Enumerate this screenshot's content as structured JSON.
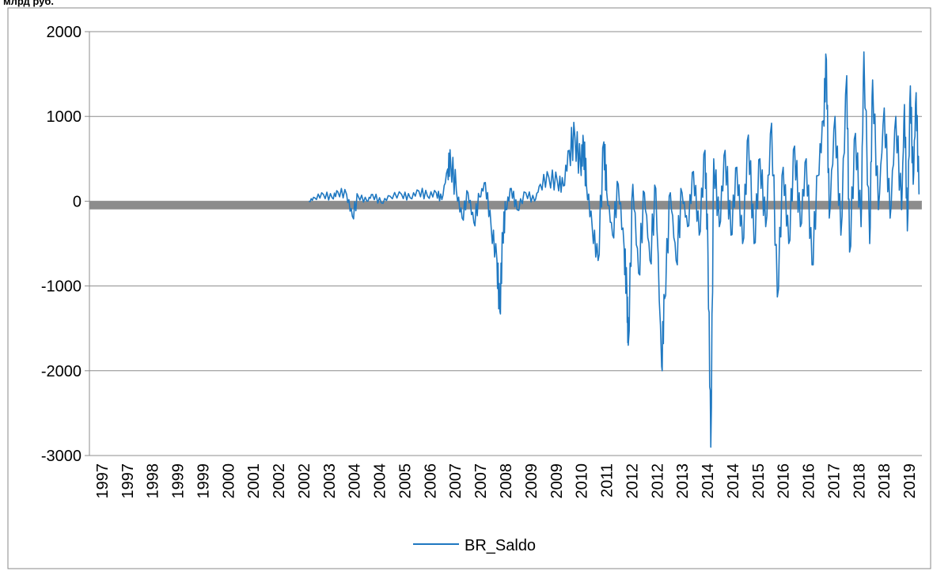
{
  "unit_label": "млрд руб.",
  "chart_data": {
    "type": "line",
    "ylim": [
      -3000,
      2000
    ],
    "yticks": [
      2000,
      1000,
      0,
      -1000,
      -2000,
      -3000
    ],
    "xticks": [
      "1997",
      "1997",
      "1998",
      "1999",
      "1999",
      "2000",
      "2001",
      "2002",
      "2002",
      "2003",
      "2004",
      "2004",
      "2005",
      "2006",
      "2007",
      "2007",
      "2008",
      "2009",
      "2009",
      "2010",
      "2011",
      "2012",
      "2012",
      "2013",
      "2014",
      "2014",
      "2015",
      "2016",
      "2016",
      "2017",
      "2018",
      "2018",
      "2019"
    ],
    "grid": true,
    "legend_position": "bottom",
    "series": [
      {
        "name": "BR_Saldo",
        "color": "#1f78c1",
        "points": [
          [
            "2003-05-01",
            0
          ],
          [
            "2003-07-01",
            40
          ],
          [
            "2003-10-01",
            80
          ],
          [
            "2004-01-01",
            40
          ],
          [
            "2004-03-01",
            110
          ],
          [
            "2004-06-01",
            80
          ],
          [
            "2004-08-01",
            -180
          ],
          [
            "2004-10-01",
            60
          ],
          [
            "2005-01-01",
            0
          ],
          [
            "2005-03-01",
            80
          ],
          [
            "2005-06-01",
            -20
          ],
          [
            "2005-09-01",
            60
          ],
          [
            "2006-01-01",
            80
          ],
          [
            "2006-04-01",
            40
          ],
          [
            "2006-07-01",
            120
          ],
          [
            "2006-10-01",
            60
          ],
          [
            "2007-01-01",
            100
          ],
          [
            "2007-03-01",
            20
          ],
          [
            "2007-05-01",
            380
          ],
          [
            "2007-06-01",
            480
          ],
          [
            "2007-08-01",
            120
          ],
          [
            "2007-10-01",
            -200
          ],
          [
            "2007-12-01",
            100
          ],
          [
            "2008-02-01",
            -250
          ],
          [
            "2008-04-01",
            50
          ],
          [
            "2008-06-01",
            220
          ],
          [
            "2008-08-01",
            -300
          ],
          [
            "2008-10-01",
            -700
          ],
          [
            "2008-11-01",
            -1300
          ],
          [
            "2008-12-01",
            -400
          ],
          [
            "2009-01-01",
            -100
          ],
          [
            "2009-03-01",
            150
          ],
          [
            "2009-05-01",
            -100
          ],
          [
            "2009-08-01",
            100
          ],
          [
            "2009-11-01",
            0
          ],
          [
            "2010-01-01",
            200
          ],
          [
            "2010-04-01",
            280
          ],
          [
            "2010-07-01",
            220
          ],
          [
            "2010-09-01",
            180
          ],
          [
            "2010-11-01",
            600
          ],
          [
            "2011-01-01",
            750
          ],
          [
            "2011-03-01",
            400
          ],
          [
            "2011-04-01",
            680
          ],
          [
            "2011-05-01",
            200
          ],
          [
            "2011-07-01",
            -300
          ],
          [
            "2011-09-01",
            -700
          ],
          [
            "2011-11-01",
            700
          ],
          [
            "2011-12-01",
            100
          ],
          [
            "2012-02-01",
            -400
          ],
          [
            "2012-04-01",
            200
          ],
          [
            "2012-06-01",
            -550
          ],
          [
            "2012-07-01",
            -1100
          ],
          [
            "2012-07-15",
            -1700
          ],
          [
            "2012-09-01",
            200
          ],
          [
            "2012-11-01",
            -850
          ],
          [
            "2013-01-01",
            100
          ],
          [
            "2013-03-01",
            -700
          ],
          [
            "2013-05-01",
            150
          ],
          [
            "2013-07-01",
            -1950
          ],
          [
            "2013-08-01",
            -1150
          ],
          [
            "2013-10-01",
            100
          ],
          [
            "2013-12-01",
            -700
          ],
          [
            "2014-02-01",
            100
          ],
          [
            "2014-04-01",
            -300
          ],
          [
            "2014-06-01",
            350
          ],
          [
            "2014-08-01",
            -400
          ],
          [
            "2014-10-01",
            600
          ],
          [
            "2014-11-01",
            -600
          ],
          [
            "2014-12-01",
            -2900
          ],
          [
            "2015-01-01",
            500
          ],
          [
            "2015-03-01",
            -300
          ],
          [
            "2015-05-01",
            600
          ],
          [
            "2015-07-01",
            -400
          ],
          [
            "2015-09-01",
            400
          ],
          [
            "2015-11-01",
            -500
          ],
          [
            "2016-01-01",
            780
          ],
          [
            "2016-03-01",
            -500
          ],
          [
            "2016-05-01",
            500
          ],
          [
            "2016-07-01",
            -300
          ],
          [
            "2016-09-01",
            920
          ],
          [
            "2016-11-01",
            -1130
          ],
          [
            "2017-01-01",
            400
          ],
          [
            "2017-03-01",
            -500
          ],
          [
            "2017-05-01",
            650
          ],
          [
            "2017-07-01",
            -300
          ],
          [
            "2017-09-01",
            500
          ],
          [
            "2017-11-01",
            -750
          ],
          [
            "2018-01-01",
            300
          ],
          [
            "2018-03-01",
            950
          ],
          [
            "2018-04-01",
            1670
          ],
          [
            "2018-05-01",
            -200
          ],
          [
            "2018-07-01",
            1000
          ],
          [
            "2018-09-01",
            -400
          ],
          [
            "2018-11-01",
            1480
          ],
          [
            "2018-12-01",
            -600
          ],
          [
            "2019-02-01",
            800
          ],
          [
            "2019-04-01",
            -300
          ],
          [
            "2019-05-01",
            1760
          ],
          [
            "2019-07-01",
            -500
          ],
          [
            "2019-08-01",
            1430
          ],
          [
            "2019-10-01",
            -100
          ],
          [
            "2019-12-01",
            1100
          ],
          [
            "2020-02-01",
            -200
          ],
          [
            "2020-04-01",
            1000
          ],
          [
            "2020-06-01",
            -100
          ],
          [
            "2020-07-01",
            1140
          ],
          [
            "2020-08-01",
            -350
          ],
          [
            "2020-09-01",
            1360
          ],
          [
            "2020-10-01",
            200
          ],
          [
            "2020-11-01",
            1280
          ],
          [
            "2020-12-01",
            80
          ]
        ]
      },
      {
        "name": "",
        "color": "#8c8c8c",
        "constant": -50,
        "x_range": [
          "1997-01-01",
          "2020-12-31"
        ]
      }
    ]
  }
}
